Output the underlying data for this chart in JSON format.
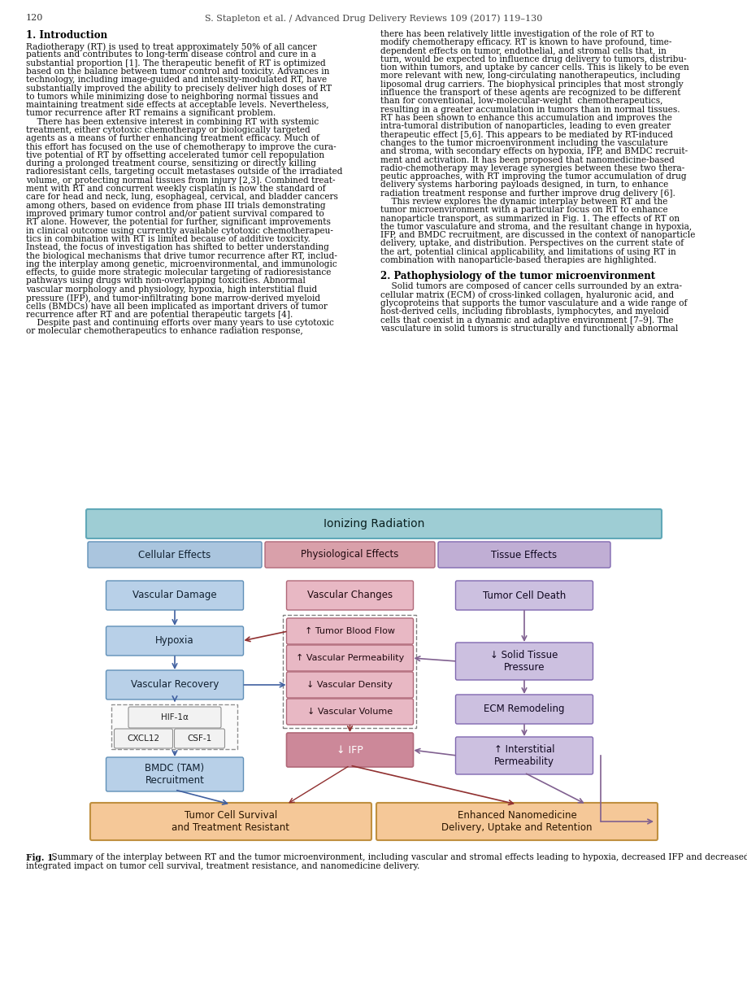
{
  "page_number": "120",
  "header": "S. Stapleton et al. / Advanced Drug Delivery Reviews 109 (2017) 119–130",
  "section1_title": "1. Introduction",
  "col1_lines": [
    "Radiotherapy (RT) is used to treat approximately 50% of all cancer",
    "patients and contributes to long-term disease control and cure in a",
    "substantial proportion [1]. The therapeutic benefit of RT is optimized",
    "based on the balance between tumor control and toxicity. Advances in",
    "technology, including image-guided and intensity-modulated RT, have",
    "substantially improved the ability to precisely deliver high doses of RT",
    "to tumors while minimizing dose to neighboring normal tissues and",
    "maintaining treatment side effects at acceptable levels. Nevertheless,",
    "tumor recurrence after RT remains a significant problem.",
    "    There has been extensive interest in combining RT with systemic",
    "treatment, either cytotoxic chemotherapy or biologically targeted",
    "agents as a means of further enhancing treatment efficacy. Much of",
    "this effort has focused on the use of chemotherapy to improve the cura-",
    "tive potential of RT by offsetting accelerated tumor cell repopulation",
    "during a prolonged treatment course, sensitizing or directly killing",
    "radioresistant cells, targeting occult metastases outside of the irradiated",
    "volume, or protecting normal tissues from injury [2,3]. Combined treat-",
    "ment with RT and concurrent weekly cisplatin is now the standard of",
    "care for head and neck, lung, esophageal, cervical, and bladder cancers",
    "among others, based on evidence from phase III trials demonstrating",
    "improved primary tumor control and/or patient survival compared to",
    "RT alone. However, the potential for further, significant improvements",
    "in clinical outcome using currently available cytotoxic chemotherapeu-",
    "tics in combination with RT is limited because of additive toxicity.",
    "Instead, the focus of investigation has shifted to better understanding",
    "the biological mechanisms that drive tumor recurrence after RT, includ-",
    "ing the interplay among genetic, microenvironmental, and immunologic",
    "effects, to guide more strategic molecular targeting of radioresistance",
    "pathways using drugs with non-overlapping toxicities. Abnormal",
    "vascular morphology and physiology, hypoxia, high interstitial fluid",
    "pressure (IFP), and tumor-infiltrating bone marrow-derived myeloid",
    "cells (BMDCs) have all been implicated as important drivers of tumor",
    "recurrence after RT and are potential therapeutic targets [4].",
    "    Despite past and continuing efforts over many years to use cytotoxic",
    "or molecular chemotherapeutics to enhance radiation response,"
  ],
  "col2_lines": [
    "there has been relatively little investigation of the role of RT to",
    "modify chemotherapy efficacy. RT is known to have profound, time-",
    "dependent effects on tumor, endothelial, and stromal cells that, in",
    "turn, would be expected to influence drug delivery to tumors, distribu-",
    "tion within tumors, and uptake by cancer cells. This is likely to be even",
    "more relevant with new, long-circulating nanotherapeutics, including",
    "liposomal drug carriers. The biophysical principles that most strongly",
    "influence the transport of these agents are recognized to be different",
    "than for conventional, low-molecular-weight  chemotherapeutics,",
    "resulting in a greater accumulation in tumors than in normal tissues.",
    "RT has been shown to enhance this accumulation and improves the",
    "intra-tumoral distribution of nanoparticles, leading to even greater",
    "therapeutic effect [5,6]. This appears to be mediated by RT-induced",
    "changes to the tumor microenvironment including the vasculature",
    "and stroma, with secondary effects on hypoxia, IFP, and BMDC recruit-",
    "ment and activation. It has been proposed that nanomedicine-based",
    "radio-chemotherapy may leverage synergies between these two thera-",
    "peutic approaches, with RT improving the tumor accumulation of drug",
    "delivery systems harboring payloads designed, in turn, to enhance",
    "radiation treatment response and further improve drug delivery [6].",
    "    This review explores the dynamic interplay between RT and the",
    "tumor microenvironment with a particular focus on RT to enhance",
    "nanoparticle transport, as summarized in Fig. 1. The effects of RT on",
    "the tumor vasculature and stroma, and the resultant change in hypoxia,",
    "IFP, and BMDC recruitment, are discussed in the context of nanoparticle",
    "delivery, uptake, and distribution. Perspectives on the current state of",
    "the art, potential clinical applicability, and limitations of using RT in",
    "combination with nanoparticle-based therapies are highlighted."
  ],
  "section2_title": "2. Pathophysiology of the tumor microenvironment",
  "col2_sec2_lines": [
    "    Solid tumors are composed of cancer cells surrounded by an extra-",
    "cellular matrix (ECM) of cross-linked collagen, hyaluronic acid, and",
    "glycoproteins that supports the tumor vasculature and a wide range of",
    "host-derived cells, including fibroblasts, lymphocytes, and myeloid",
    "cells that coexist in a dynamic and adaptive environment [7–9]. The",
    "vasculature in solid tumors is structurally and functionally abnormal"
  ],
  "fig_caption_bold": "Fig. 1.",
  "fig_caption_rest": " Summary of the interplay between RT and the tumor microenvironment, including vascular and stromal effects leading to hypoxia, decreased IFP and decreased STP, and the",
  "fig_caption_line2": "integrated impact on tumor cell survival, treatment resistance, and nanomedicine delivery.",
  "colors": {
    "background": "#ffffff",
    "teal_header": "#9ecdd4",
    "blue_col_header": "#aac5de",
    "pink_col_header": "#d9a0aa",
    "purple_col_header": "#c0aed4",
    "blue_box": "#b8d0e8",
    "pink_box": "#e8b8c4",
    "pink_dark": "#cc8899",
    "purple_box": "#ccc0e0",
    "orange_box": "#f5c898",
    "white_small": "#f2f2f2",
    "border_blue": "#6090b8",
    "border_pink": "#b06878",
    "border_purple": "#8068b0",
    "border_teal": "#60a8b8",
    "border_orange": "#c09040",
    "arrow_blue": "#4060a0",
    "arrow_dark_red": "#903030",
    "arrow_purple": "#806090"
  }
}
